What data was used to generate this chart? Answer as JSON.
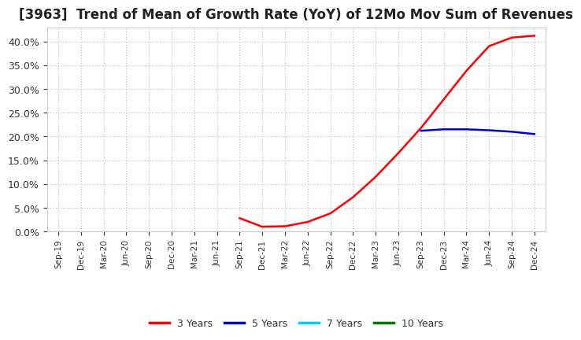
{
  "title": "[3963]  Trend of Mean of Growth Rate (YoY) of 12Mo Mov Sum of Revenues",
  "title_fontsize": 12,
  "ylim": [
    0.0,
    0.43
  ],
  "yticks": [
    0.0,
    0.05,
    0.1,
    0.15,
    0.2,
    0.25,
    0.3,
    0.35,
    0.4
  ],
  "background_color": "#ffffff",
  "plot_bg_color": "#ffffff",
  "grid_color": "#bbbbbb",
  "legend_labels": [
    "3 Years",
    "5 Years",
    "7 Years",
    "10 Years"
  ],
  "legend_colors": [
    "#ff0000",
    "#0000cc",
    "#00ccff",
    "#007700"
  ],
  "x_labels": [
    "Sep-19",
    "Dec-19",
    "Mar-20",
    "Jun-20",
    "Sep-20",
    "Dec-20",
    "Mar-21",
    "Jun-21",
    "Sep-21",
    "Dec-21",
    "Mar-22",
    "Jun-22",
    "Sep-22",
    "Dec-22",
    "Mar-23",
    "Jun-23",
    "Sep-23",
    "Dec-23",
    "Mar-24",
    "Jun-24",
    "Sep-24",
    "Dec-24"
  ],
  "series_3y_x": [
    8,
    9,
    10,
    11,
    12,
    13,
    14,
    15,
    16,
    17,
    18,
    19,
    20,
    21
  ],
  "series_3y_y": [
    0.028,
    0.01,
    0.011,
    0.02,
    0.038,
    0.072,
    0.115,
    0.165,
    0.218,
    0.278,
    0.338,
    0.39,
    0.408,
    0.412
  ],
  "series_5y_x": [
    16,
    17,
    18,
    19,
    20,
    21
  ],
  "series_5y_y": [
    0.212,
    0.215,
    0.215,
    0.213,
    0.21,
    0.205
  ],
  "series_7y_x": [],
  "series_7y_y": [],
  "series_10y_x": [],
  "series_10y_y": [],
  "line_width": 1.8
}
